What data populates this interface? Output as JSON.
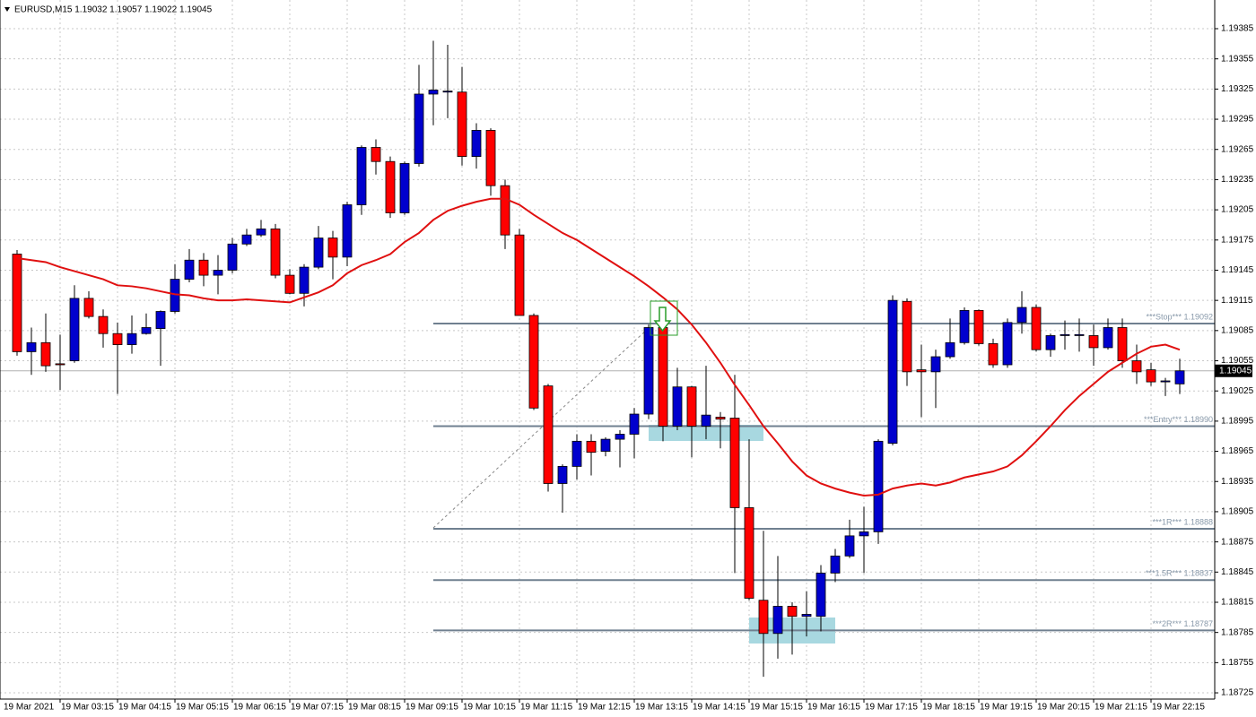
{
  "chart_data": {
    "type": "candlestick",
    "title": "EURUSD,M15  1.19032 1.19057 1.19022 1.19045",
    "start_label": "19 Mar 2021",
    "categories": [
      null,
      null,
      null,
      "19 Mar 03:15",
      null,
      null,
      null,
      "19 Mar 04:15",
      null,
      null,
      null,
      "19 Mar 05:15",
      null,
      null,
      null,
      "19 Mar 06:15",
      null,
      null,
      null,
      "19 Mar 07:15",
      null,
      null,
      null,
      "19 Mar 08:15",
      null,
      null,
      null,
      "19 Mar 09:15",
      null,
      null,
      null,
      "19 Mar 10:15",
      null,
      null,
      null,
      "19 Mar 11:15",
      null,
      null,
      null,
      "19 Mar 12:15",
      null,
      null,
      null,
      "19 Mar 13:15",
      null,
      null,
      null,
      "19 Mar 14:15",
      null,
      null,
      null,
      "19 Mar 15:15",
      null,
      null,
      null,
      "19 Mar 16:15",
      null,
      null,
      null,
      "19 Mar 17:15",
      null,
      null,
      null,
      "19 Mar 18:15",
      null,
      null,
      null,
      "19 Mar 19:15",
      null,
      null,
      null,
      "19 Mar 20:15",
      null,
      null,
      null,
      "19 Mar 21:15",
      null,
      null,
      null,
      "19 Mar 22:15",
      null,
      null
    ],
    "open": [
      1.19161,
      1.19064,
      1.19073,
      1.19052,
      1.19055,
      1.19117,
      1.19099,
      1.19082,
      1.19071,
      1.19082,
      1.19087,
      1.19104,
      1.19136,
      1.19155,
      1.1914,
      1.19145,
      1.19171,
      1.1918,
      1.19186,
      1.1914,
      1.19122,
      1.19148,
      1.19177,
      1.19158,
      1.1921,
      1.19267,
      1.19253,
      1.19202,
      1.19251,
      1.1932,
      1.19322,
      1.19322,
      1.19258,
      1.19284,
      1.19229,
      1.1918,
      1.191,
      1.1903,
      1.18933,
      1.1895,
      1.18975,
      1.18965,
      1.18977,
      1.18982,
      1.19002,
      1.19088,
      1.1899,
      1.19029,
      1.1899,
      1.18999,
      1.18998,
      1.18909,
      1.18817,
      1.18784,
      1.18811,
      1.18801,
      1.18801,
      1.18844,
      1.18861,
      1.18881,
      1.18885,
      1.18973,
      1.19114,
      1.19046,
      1.19044,
      1.19059,
      1.19073,
      1.19105,
      1.19072,
      1.19051,
      1.19093,
      1.19108,
      1.19066,
      1.1908,
      1.1908,
      1.1908,
      1.19068,
      1.19088,
      1.19055,
      1.19046,
      1.19034,
      1.19032
    ],
    "high": [
      1.19165,
      1.19088,
      1.19102,
      1.19081,
      1.1913,
      1.19124,
      1.19106,
      1.19093,
      1.191,
      1.19102,
      1.19105,
      1.19151,
      1.19166,
      1.19162,
      1.1916,
      1.19177,
      1.19186,
      1.19195,
      1.19191,
      1.19146,
      1.19151,
      1.19189,
      1.19184,
      1.19213,
      1.19269,
      1.19275,
      1.19258,
      1.19253,
      1.19349,
      1.19373,
      1.19369,
      1.19347,
      1.19291,
      1.19286,
      1.19235,
      1.19186,
      1.19102,
      1.19032,
      1.18952,
      1.18982,
      1.18982,
      1.18979,
      1.18986,
      1.19008,
      1.19091,
      1.19093,
      1.19048,
      1.1903,
      1.1905,
      1.19004,
      1.19041,
      1.18977,
      1.18886,
      1.18861,
      1.18815,
      1.18826,
      1.18852,
      1.18868,
      1.18897,
      1.1891,
      1.18977,
      1.1912,
      1.19117,
      1.19071,
      1.19066,
      1.19097,
      1.19108,
      1.19106,
      1.19077,
      1.19097,
      1.19124,
      1.19111,
      1.19082,
      1.19095,
      1.19097,
      1.19091,
      1.19097,
      1.19097,
      1.19071,
      1.19053,
      1.19038,
      1.19057
    ],
    "low": [
      1.1906,
      1.19041,
      1.19044,
      1.19026,
      1.19053,
      1.19097,
      1.19068,
      1.19022,
      1.19062,
      1.19081,
      1.1905,
      1.19102,
      1.19133,
      1.19129,
      1.19121,
      1.19142,
      1.19169,
      1.19178,
      1.19137,
      1.19121,
      1.19109,
      1.19146,
      1.19136,
      1.19149,
      1.192,
      1.1924,
      1.19197,
      1.192,
      1.19248,
      1.19289,
      1.19296,
      1.19249,
      1.19246,
      1.19219,
      1.19166,
      1.191,
      1.19006,
      1.18925,
      1.18904,
      1.18937,
      1.18941,
      1.1896,
      1.18949,
      1.18958,
      1.18997,
      1.18975,
      1.18986,
      1.18959,
      1.18977,
      1.18968,
      1.18844,
      1.18817,
      1.18741,
      1.18759,
      1.18763,
      1.18781,
      1.18786,
      1.18835,
      1.18859,
      1.18844,
      1.18873,
      1.18971,
      1.1903,
      1.18999,
      1.19008,
      1.19057,
      1.19071,
      1.1907,
      1.19048,
      1.19048,
      1.19082,
      1.19064,
      1.19059,
      1.19066,
      1.19064,
      1.1905,
      1.19066,
      1.19048,
      1.19032,
      1.1903,
      1.1902,
      1.19022
    ],
    "close": [
      1.19064,
      1.19073,
      1.1905,
      1.19051,
      1.19117,
      1.19099,
      1.19082,
      1.19071,
      1.19082,
      1.19088,
      1.19104,
      1.19136,
      1.19155,
      1.1914,
      1.19145,
      1.19171,
      1.1918,
      1.19186,
      1.1914,
      1.19122,
      1.19148,
      1.19177,
      1.19158,
      1.1921,
      1.19267,
      1.19253,
      1.19202,
      1.19251,
      1.1932,
      1.19324,
      1.19323,
      1.19258,
      1.19284,
      1.19229,
      1.1918,
      1.191,
      1.19008,
      1.18933,
      1.1895,
      1.18975,
      1.18964,
      1.18977,
      1.18982,
      1.19002,
      1.19088,
      1.1899,
      1.19029,
      1.1899,
      1.19001,
      1.18997,
      1.18909,
      1.18819,
      1.18784,
      1.18811,
      1.18801,
      1.18803,
      1.18844,
      1.18861,
      1.18881,
      1.18885,
      1.18975,
      1.19115,
      1.19044,
      1.19044,
      1.19059,
      1.19073,
      1.19105,
      1.19072,
      1.19051,
      1.19093,
      1.19108,
      1.19066,
      1.1908,
      1.19081,
      1.19081,
      1.19068,
      1.19088,
      1.19055,
      1.19044,
      1.19034,
      1.19035,
      1.19045
    ],
    "up_color": "#0000cd",
    "down_color": "#ff0000",
    "ma": {
      "color": "#e01010",
      "values": [
        1.19157,
        1.19155,
        1.19153,
        1.19148,
        1.19144,
        1.1914,
        1.19136,
        1.1913,
        1.19129,
        1.19127,
        1.19124,
        1.19121,
        1.1912,
        1.19117,
        1.19115,
        1.19115,
        1.19116,
        1.19115,
        1.19114,
        1.19113,
        1.19118,
        1.19123,
        1.1913,
        1.19142,
        1.1915,
        1.19155,
        1.19161,
        1.19173,
        1.19182,
        1.19195,
        1.19204,
        1.19209,
        1.19213,
        1.19216,
        1.19216,
        1.1921,
        1.192,
        1.19191,
        1.19182,
        1.19175,
        1.19166,
        1.19157,
        1.19148,
        1.19139,
        1.19129,
        1.19118,
        1.19106,
        1.19091,
        1.19073,
        1.19053,
        1.19031,
        1.19011,
        1.1899,
        1.18973,
        1.18955,
        1.18941,
        1.18933,
        1.18928,
        1.18924,
        1.18921,
        1.18922,
        1.18928,
        1.18931,
        1.18933,
        1.18931,
        1.18934,
        1.18939,
        1.18942,
        1.18945,
        1.1895,
        1.18961,
        1.18975,
        1.1899,
        1.19006,
        1.1902,
        1.19032,
        1.19044,
        1.19053,
        1.19062,
        1.19069,
        1.19071,
        1.19066
      ]
    },
    "levels": [
      {
        "value": 1.19092,
        "label": "***Stop*** 1.19092"
      },
      {
        "value": 1.1899,
        "label": "***Entry*** 1.18990"
      },
      {
        "value": 1.18888,
        "label": "***1R*** 1.18888"
      },
      {
        "value": 1.18837,
        "label": "***1.5R*** 1.18837"
      },
      {
        "value": 1.18787,
        "label": "***2R*** 1.18787"
      }
    ],
    "last_price": 1.19045,
    "ylim": [
      1.187188,
      1.194135
    ],
    "yticks": [
      1.19385,
      1.19355,
      1.19325,
      1.19295,
      1.19265,
      1.19235,
      1.19205,
      1.19175,
      1.19145,
      1.19115,
      1.19085,
      1.19055,
      1.19025,
      1.18995,
      1.18965,
      1.18935,
      1.18905,
      1.18875,
      1.18845,
      1.18815,
      1.18785,
      1.18755,
      1.18725
    ],
    "grid": true
  }
}
